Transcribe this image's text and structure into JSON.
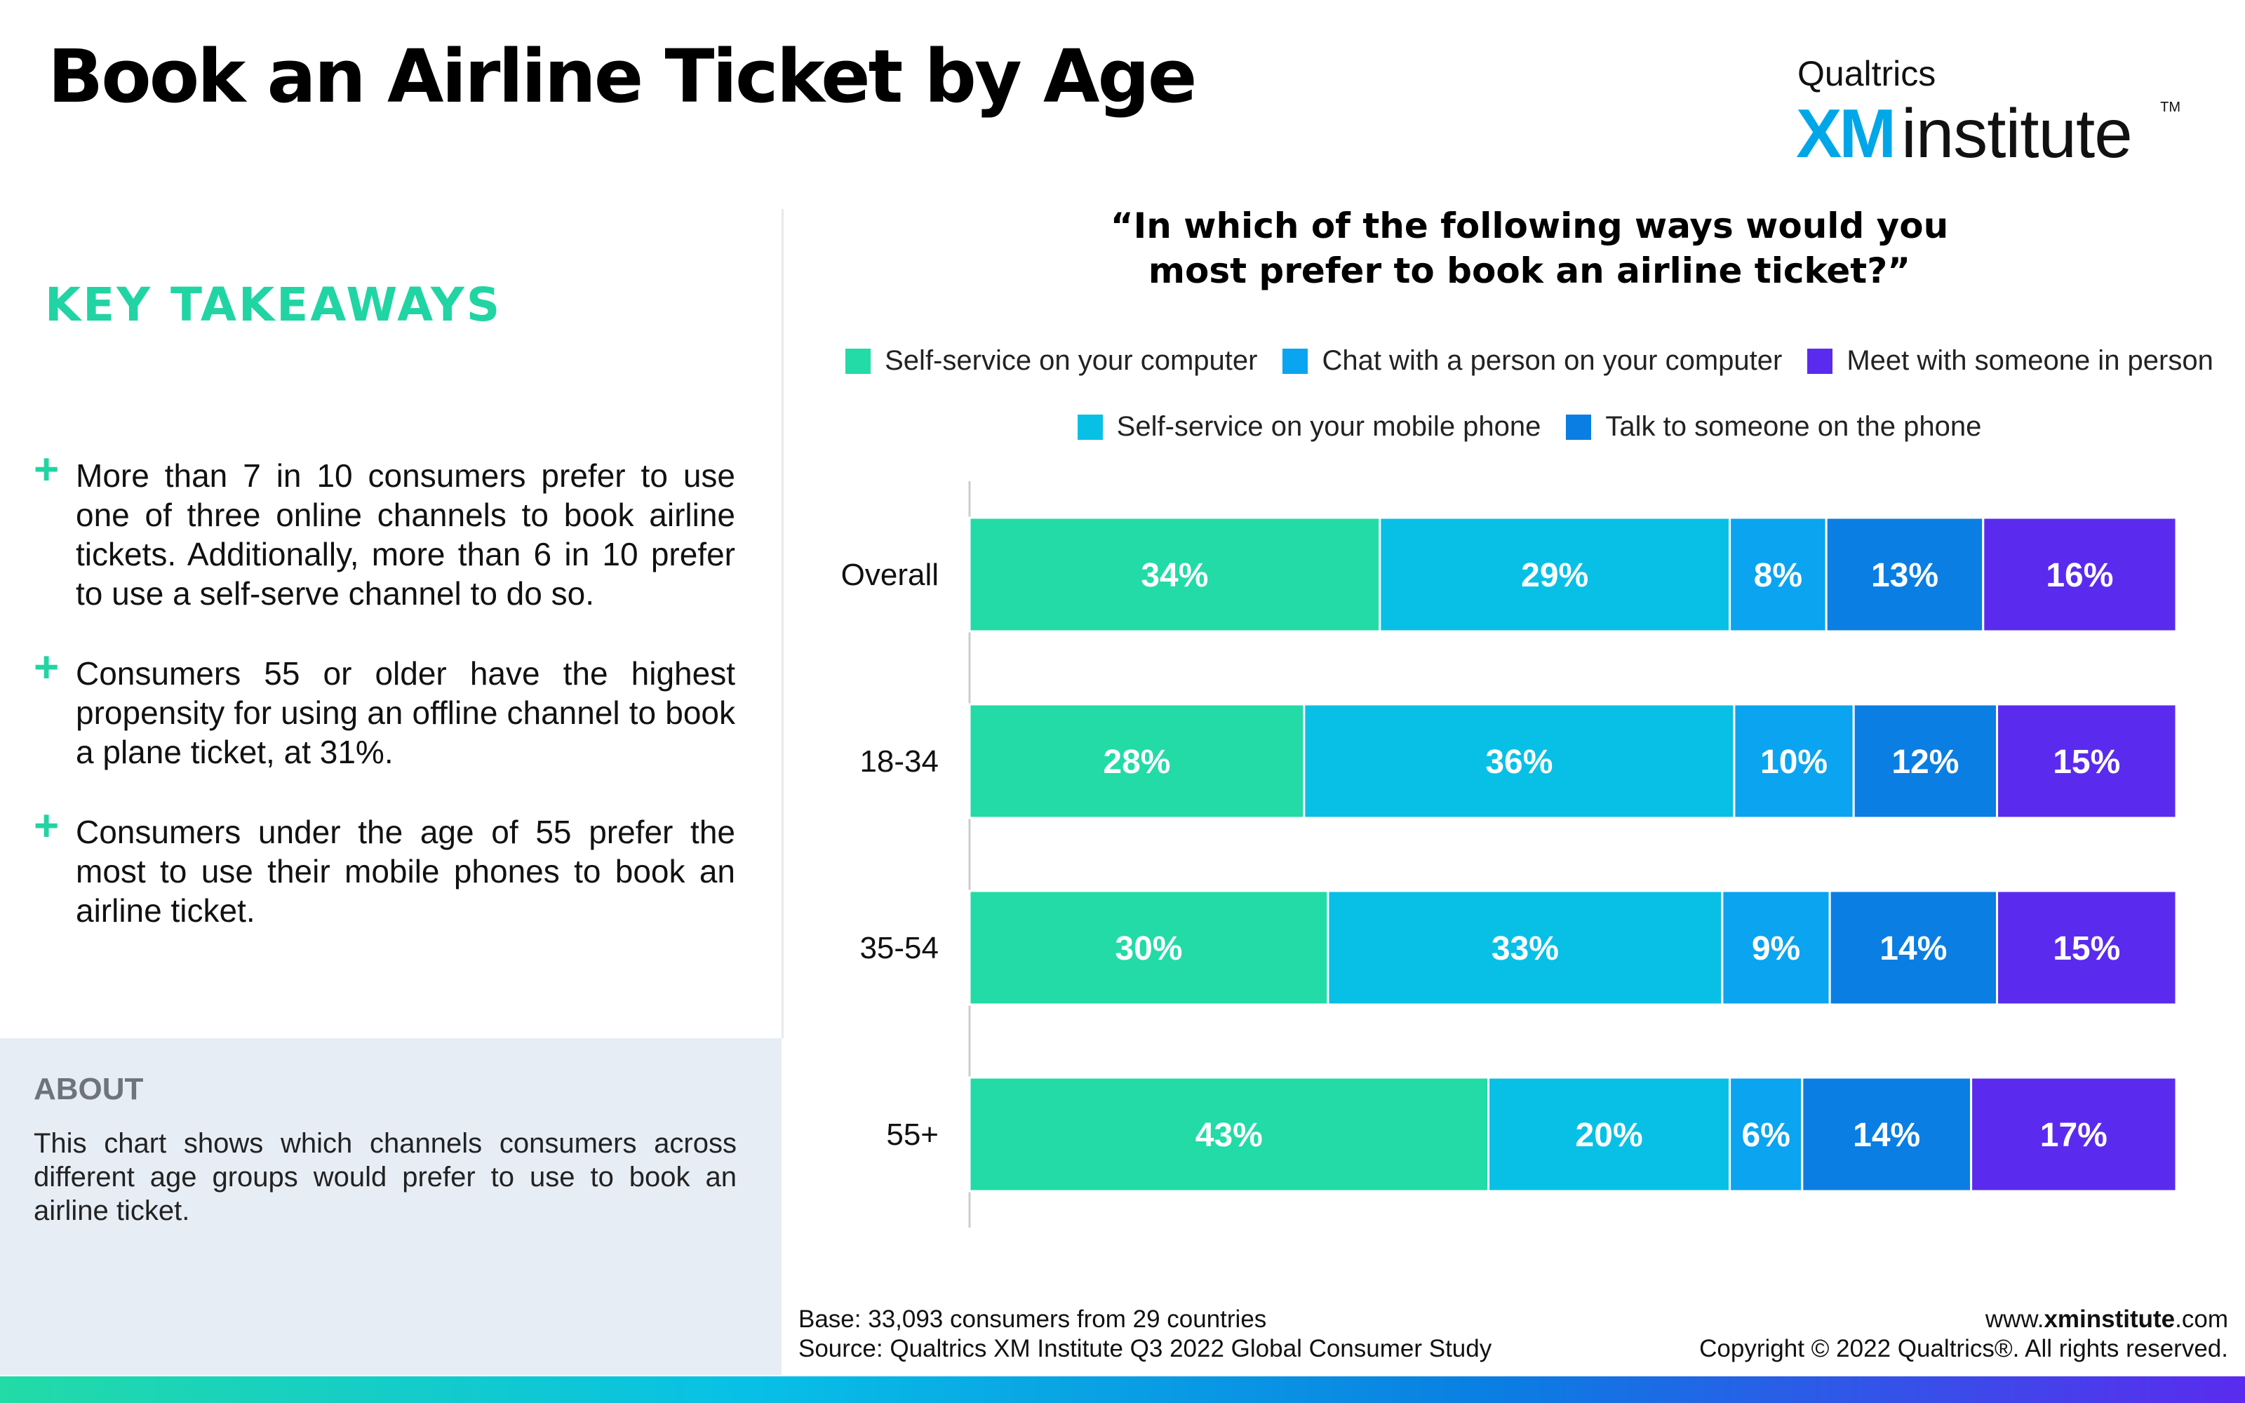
{
  "page": {
    "title": "Book an Airline Ticket by Age",
    "logo": {
      "line1": "Qualtrics",
      "xm": "XM",
      "word": "institute",
      "tm": "TM"
    }
  },
  "left": {
    "key_title": "KEY TAKEAWAYS",
    "takeaways": [
      "More than 7 in 10 consumers prefer to use one of three online channels to book airline tickets. Additionally, more than 6 in 10 prefer to use a self-serve channel to do so.",
      "Consumers 55 or older have the highest propensity for using an offline channel to book a plane ticket, at 31%.",
      "Consumers under the age of 55 prefer the most to use their mobile phones to book an airline ticket."
    ],
    "plus_glyph": "+",
    "about_title": "ABOUT",
    "about_text": "This chart shows which channels consumers across different age groups would prefer to use to book an airline ticket."
  },
  "chart_data": {
    "type": "bar",
    "orientation": "horizontal",
    "stacked": true,
    "title": "“In which of the following ways would you most prefer to book an airline ticket?”",
    "title_lines": [
      "“In which of the following ways would you",
      "most prefer to book an airline ticket?”"
    ],
    "categories": [
      "Overall",
      "18-34",
      "35-54",
      "55+"
    ],
    "series": [
      {
        "name": "Self-service on your computer",
        "values": [
          34,
          28,
          30,
          43
        ],
        "color": "#22dba7"
      },
      {
        "name": "Self-service on your mobile phone",
        "values": [
          29,
          36,
          33,
          20
        ],
        "color": "#08c0e6"
      },
      {
        "name": "Chat with a person on your computer",
        "values": [
          8,
          10,
          9,
          6
        ],
        "color": "#0ba4f0"
      },
      {
        "name": "Talk to someone on the phone",
        "values": [
          13,
          12,
          14,
          14
        ],
        "color": "#0a7ee2"
      },
      {
        "name": "Meet with someone in person",
        "values": [
          16,
          15,
          15,
          17
        ],
        "color": "#5a2bee"
      }
    ],
    "legend_rows": [
      [
        0,
        2,
        4
      ],
      [
        1,
        3
      ]
    ],
    "value_suffix": "%",
    "xlim": [
      0,
      100
    ],
    "legend_position": "top",
    "grid": false
  },
  "footer": {
    "base": "Base: 33,093 consumers from 29 countries",
    "source": "Source: Qualtrics XM Institute Q3 2022 Global Consumer Study",
    "site_prefix": "www.",
    "site_bold": "xminstitute",
    "site_suffix": ".com",
    "copyright": "Copyright © 2022 Qualtrics®. All rights reserved."
  },
  "colors": {
    "accent_green": "#21d4a3",
    "brand_blue": "#00a7e8",
    "about_bg": "#e6edf5",
    "gradient": [
      "#22dba7",
      "#08c0e6",
      "#0a7ee2",
      "#5a2bee"
    ]
  }
}
